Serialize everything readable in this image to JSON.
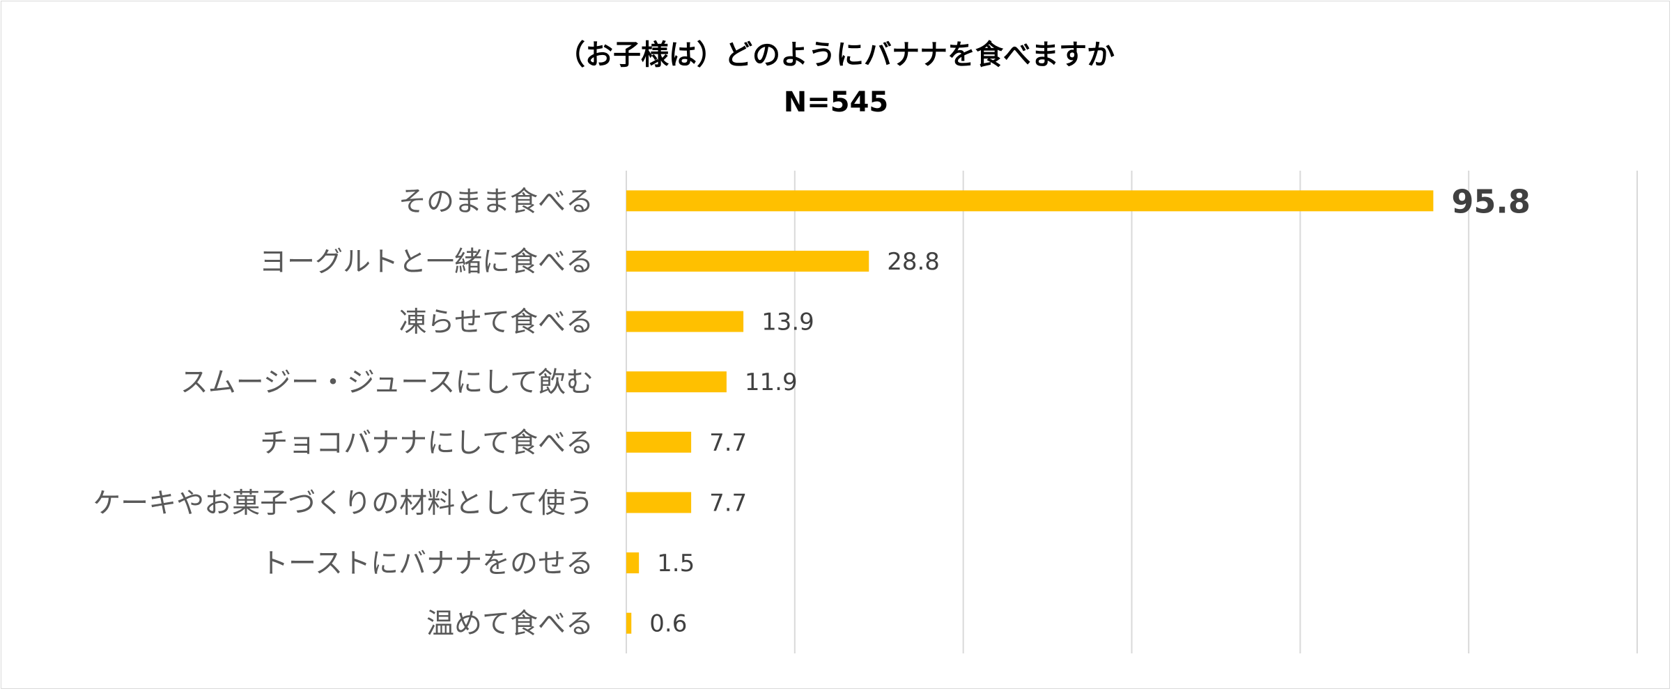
{
  "chart_data": {
    "type": "bar",
    "orientation": "horizontal",
    "title": "（お子様は）どのようにバナナを食べますか",
    "subtitle": "N=545",
    "categories": [
      "そのまま食べる",
      "ヨーグルトと一緒に食べる",
      "凍らせて食べる",
      "スムージー・ジュースにして飲む",
      "チョコバナナにして食べる",
      "ケーキやお菓子づくりの材料として使う",
      "トーストにバナナをのせる",
      "温めて食べる"
    ],
    "values": [
      95.8,
      28.8,
      13.9,
      11.9,
      7.7,
      7.7,
      1.5,
      0.6
    ],
    "value_labels": [
      "95.8",
      "28.8",
      "13.9",
      "11.9",
      "7.7",
      "7.7",
      "1.5",
      "0.6"
    ],
    "xlim": [
      0,
      120
    ],
    "grid": true,
    "legend": "none",
    "bar_color": "#FFC000",
    "gridline_color": "#D9D9D9"
  }
}
